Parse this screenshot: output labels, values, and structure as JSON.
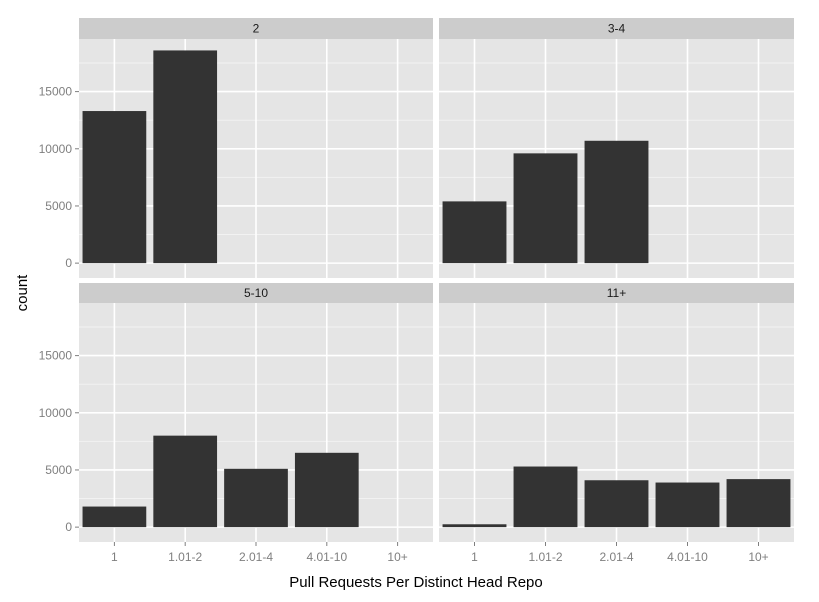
{
  "chart_data": {
    "type": "bar",
    "xlabel": "Pull Requests Per Distinct Head Repo",
    "ylabel": "count",
    "categories": [
      "1",
      "1.01-2",
      "2.01-4",
      "4.01-10",
      "10+"
    ],
    "ylim": [
      -1300,
      19600
    ],
    "yticks": [
      0,
      5000,
      10000,
      15000
    ],
    "grid": true,
    "legend": "none",
    "colors": {
      "bar": "#333333",
      "panel_background": "#e5e5e5",
      "strip_background": "#cccccc",
      "grid_major": "#ffffff",
      "grid_minor": "#f2f2f2"
    },
    "facets": [
      {
        "label": "2",
        "values": [
          13300,
          18600,
          0,
          0,
          0
        ]
      },
      {
        "label": "3-4",
        "values": [
          5400,
          9600,
          10700,
          0,
          0
        ]
      },
      {
        "label": "5-10",
        "values": [
          1800,
          8000,
          5100,
          6500,
          0
        ]
      },
      {
        "label": "11+",
        "values": [
          250,
          5300,
          4100,
          3900,
          4200
        ]
      }
    ]
  }
}
